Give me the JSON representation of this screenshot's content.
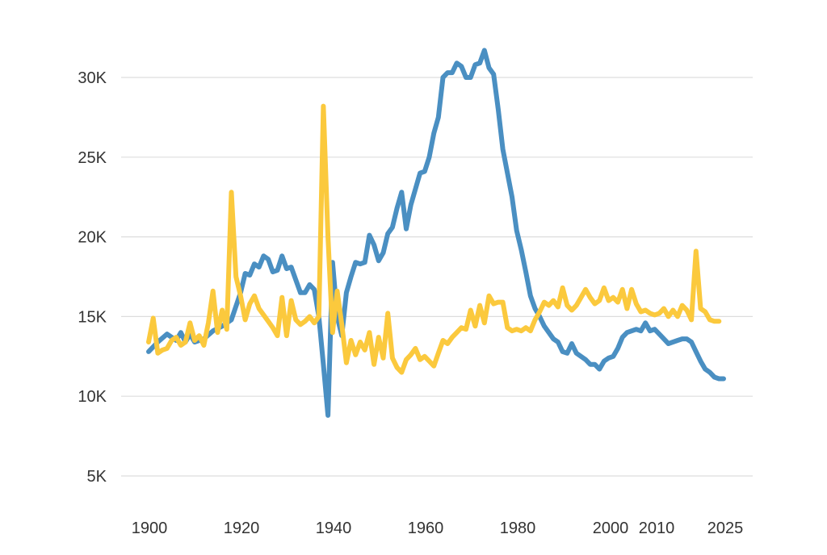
{
  "chart_data": {
    "type": "line",
    "title": "",
    "xlabel": "",
    "ylabel": "",
    "xlim": [
      1900,
      2025
    ],
    "ylim": [
      5000,
      30000
    ],
    "grid": "horizontal",
    "legend": "none",
    "x_ticks": [
      {
        "value": 1900,
        "label": "1900"
      },
      {
        "value": 1920,
        "label": "1920"
      },
      {
        "value": 1940,
        "label": "1940"
      },
      {
        "value": 1960,
        "label": "1960"
      },
      {
        "value": 1980,
        "label": "1980"
      },
      {
        "value": 2000,
        "label": "2000"
      },
      {
        "value": 2010,
        "label": "2010"
      },
      {
        "value": 2025,
        "label": "2025"
      }
    ],
    "y_ticks": [
      {
        "value": 5000,
        "label": "5K"
      },
      {
        "value": 10000,
        "label": "10K"
      },
      {
        "value": 15000,
        "label": "15K"
      },
      {
        "value": 20000,
        "label": "20K"
      },
      {
        "value": 25000,
        "label": "25K"
      },
      {
        "value": 30000,
        "label": "30K"
      }
    ],
    "colors": {
      "grid": "#dddddd",
      "axis_text": "#333333"
    },
    "series": [
      {
        "color": "#4a8fc2",
        "points": [
          [
            1900,
            12800
          ],
          [
            1902,
            13400
          ],
          [
            1904,
            13900
          ],
          [
            1906,
            13500
          ],
          [
            1907,
            14000
          ],
          [
            1908,
            13400
          ],
          [
            1909,
            13900
          ],
          [
            1910,
            13400
          ],
          [
            1912,
            13600
          ],
          [
            1914,
            14100
          ],
          [
            1916,
            14400
          ],
          [
            1918,
            14800
          ],
          [
            1920,
            16500
          ],
          [
            1921,
            17700
          ],
          [
            1922,
            17600
          ],
          [
            1923,
            18300
          ],
          [
            1924,
            18100
          ],
          [
            1925,
            18800
          ],
          [
            1926,
            18600
          ],
          [
            1927,
            17800
          ],
          [
            1928,
            17900
          ],
          [
            1929,
            18800
          ],
          [
            1930,
            18000
          ],
          [
            1931,
            18100
          ],
          [
            1932,
            17300
          ],
          [
            1933,
            16500
          ],
          [
            1934,
            16500
          ],
          [
            1935,
            17000
          ],
          [
            1936,
            16700
          ],
          [
            1937,
            15000
          ],
          [
            1938,
            12000
          ],
          [
            1939,
            8800
          ],
          [
            1940,
            18400
          ],
          [
            1941,
            15000
          ],
          [
            1942,
            13800
          ],
          [
            1943,
            16500
          ],
          [
            1944,
            17500
          ],
          [
            1945,
            18400
          ],
          [
            1946,
            18300
          ],
          [
            1947,
            18400
          ],
          [
            1948,
            20100
          ],
          [
            1949,
            19500
          ],
          [
            1950,
            18500
          ],
          [
            1951,
            19000
          ],
          [
            1952,
            20200
          ],
          [
            1953,
            20600
          ],
          [
            1954,
            21800
          ],
          [
            1955,
            22800
          ],
          [
            1956,
            20500
          ],
          [
            1957,
            22000
          ],
          [
            1958,
            23000
          ],
          [
            1959,
            24000
          ],
          [
            1960,
            24100
          ],
          [
            1961,
            25000
          ],
          [
            1962,
            26500
          ],
          [
            1963,
            27500
          ],
          [
            1964,
            30000
          ],
          [
            1965,
            30300
          ],
          [
            1966,
            30300
          ],
          [
            1967,
            30900
          ],
          [
            1968,
            30700
          ],
          [
            1969,
            30000
          ],
          [
            1970,
            30000
          ],
          [
            1971,
            30800
          ],
          [
            1972,
            30900
          ],
          [
            1973,
            31700
          ],
          [
            1974,
            30600
          ],
          [
            1975,
            30200
          ],
          [
            1976,
            28000
          ],
          [
            1977,
            25500
          ],
          [
            1978,
            24000
          ],
          [
            1979,
            22500
          ],
          [
            1980,
            20400
          ],
          [
            1981,
            19200
          ],
          [
            1982,
            17800
          ],
          [
            1983,
            16300
          ],
          [
            1984,
            15500
          ],
          [
            1985,
            15000
          ],
          [
            1986,
            14400
          ],
          [
            1987,
            14000
          ],
          [
            1988,
            13600
          ],
          [
            1989,
            13400
          ],
          [
            1990,
            12800
          ],
          [
            1991,
            12700
          ],
          [
            1992,
            13300
          ],
          [
            1993,
            12700
          ],
          [
            1994,
            12500
          ],
          [
            1995,
            12300
          ],
          [
            1996,
            12000
          ],
          [
            1997,
            12000
          ],
          [
            1998,
            11700
          ],
          [
            1999,
            12200
          ],
          [
            2000,
            12400
          ],
          [
            2001,
            12500
          ],
          [
            2002,
            13000
          ],
          [
            2003,
            13700
          ],
          [
            2004,
            14000
          ],
          [
            2005,
            14100
          ],
          [
            2006,
            14200
          ],
          [
            2007,
            14100
          ],
          [
            2008,
            14600
          ],
          [
            2009,
            14100
          ],
          [
            2010,
            14200
          ],
          [
            2011,
            13900
          ],
          [
            2012,
            13600
          ],
          [
            2013,
            13300
          ],
          [
            2014,
            13400
          ],
          [
            2015,
            13500
          ],
          [
            2016,
            13600
          ],
          [
            2017,
            13600
          ],
          [
            2018,
            13400
          ],
          [
            2019,
            12800
          ],
          [
            2020,
            12200
          ],
          [
            2021,
            11700
          ],
          [
            2022,
            11500
          ],
          [
            2023,
            11200
          ],
          [
            2024,
            11100
          ],
          [
            2025,
            11100
          ]
        ]
      },
      {
        "color": "#fbc93d",
        "points": [
          [
            1900,
            13400
          ],
          [
            1901,
            14900
          ],
          [
            1902,
            12700
          ],
          [
            1903,
            12900
          ],
          [
            1904,
            13000
          ],
          [
            1905,
            13500
          ],
          [
            1906,
            13700
          ],
          [
            1907,
            13200
          ],
          [
            1908,
            13400
          ],
          [
            1909,
            14600
          ],
          [
            1910,
            13500
          ],
          [
            1911,
            13800
          ],
          [
            1912,
            13200
          ],
          [
            1913,
            14600
          ],
          [
            1914,
            16600
          ],
          [
            1915,
            14000
          ],
          [
            1916,
            15400
          ],
          [
            1917,
            14200
          ],
          [
            1918,
            22800
          ],
          [
            1919,
            17500
          ],
          [
            1920,
            16300
          ],
          [
            1921,
            14800
          ],
          [
            1922,
            15800
          ],
          [
            1923,
            16300
          ],
          [
            1924,
            15500
          ],
          [
            1925,
            15100
          ],
          [
            1926,
            14700
          ],
          [
            1927,
            14300
          ],
          [
            1928,
            13800
          ],
          [
            1929,
            16200
          ],
          [
            1930,
            13800
          ],
          [
            1931,
            16000
          ],
          [
            1932,
            14800
          ],
          [
            1933,
            14500
          ],
          [
            1934,
            14700
          ],
          [
            1935,
            15000
          ],
          [
            1936,
            14600
          ],
          [
            1937,
            15000
          ],
          [
            1938,
            28200
          ],
          [
            1939,
            20000
          ],
          [
            1940,
            14000
          ],
          [
            1941,
            16600
          ],
          [
            1942,
            14500
          ],
          [
            1943,
            12100
          ],
          [
            1944,
            13500
          ],
          [
            1945,
            12600
          ],
          [
            1946,
            13400
          ],
          [
            1947,
            12900
          ],
          [
            1948,
            14000
          ],
          [
            1949,
            12000
          ],
          [
            1950,
            13700
          ],
          [
            1951,
            12400
          ],
          [
            1952,
            15200
          ],
          [
            1953,
            12400
          ],
          [
            1954,
            11800
          ],
          [
            1955,
            11500
          ],
          [
            1956,
            12300
          ],
          [
            1957,
            12600
          ],
          [
            1958,
            13000
          ],
          [
            1959,
            12300
          ],
          [
            1960,
            12500
          ],
          [
            1961,
            12200
          ],
          [
            1962,
            11900
          ],
          [
            1963,
            12700
          ],
          [
            1964,
            13500
          ],
          [
            1965,
            13300
          ],
          [
            1966,
            13700
          ],
          [
            1967,
            14000
          ],
          [
            1968,
            14300
          ],
          [
            1969,
            14200
          ],
          [
            1970,
            15400
          ],
          [
            1971,
            14400
          ],
          [
            1972,
            15700
          ],
          [
            1973,
            14600
          ],
          [
            1974,
            16300
          ],
          [
            1975,
            15800
          ],
          [
            1976,
            15900
          ],
          [
            1977,
            15900
          ],
          [
            1978,
            14300
          ],
          [
            1979,
            14100
          ],
          [
            1980,
            14200
          ],
          [
            1981,
            14100
          ],
          [
            1982,
            14300
          ],
          [
            1983,
            14100
          ],
          [
            1984,
            14800
          ],
          [
            1985,
            15300
          ],
          [
            1986,
            15900
          ],
          [
            1987,
            15700
          ],
          [
            1988,
            16000
          ],
          [
            1989,
            15600
          ],
          [
            1990,
            16800
          ],
          [
            1991,
            15700
          ],
          [
            1992,
            15400
          ],
          [
            1993,
            15700
          ],
          [
            1994,
            16200
          ],
          [
            1995,
            16700
          ],
          [
            1996,
            16200
          ],
          [
            1997,
            15800
          ],
          [
            1998,
            16000
          ],
          [
            1999,
            16800
          ],
          [
            2000,
            16000
          ],
          [
            2001,
            16200
          ],
          [
            2002,
            15900
          ],
          [
            2003,
            16700
          ],
          [
            2004,
            15500
          ],
          [
            2005,
            16700
          ],
          [
            2006,
            15800
          ],
          [
            2007,
            15300
          ],
          [
            2008,
            15400
          ],
          [
            2009,
            15200
          ],
          [
            2010,
            15100
          ],
          [
            2011,
            15200
          ],
          [
            2012,
            15500
          ],
          [
            2013,
            15000
          ],
          [
            2014,
            15400
          ],
          [
            2015,
            15000
          ],
          [
            2016,
            15700
          ],
          [
            2017,
            15400
          ],
          [
            2018,
            14800
          ],
          [
            2019,
            19100
          ],
          [
            2020,
            15500
          ],
          [
            2021,
            15300
          ],
          [
            2022,
            14800
          ],
          [
            2023,
            14700
          ],
          [
            2024,
            14700
          ]
        ]
      }
    ]
  }
}
